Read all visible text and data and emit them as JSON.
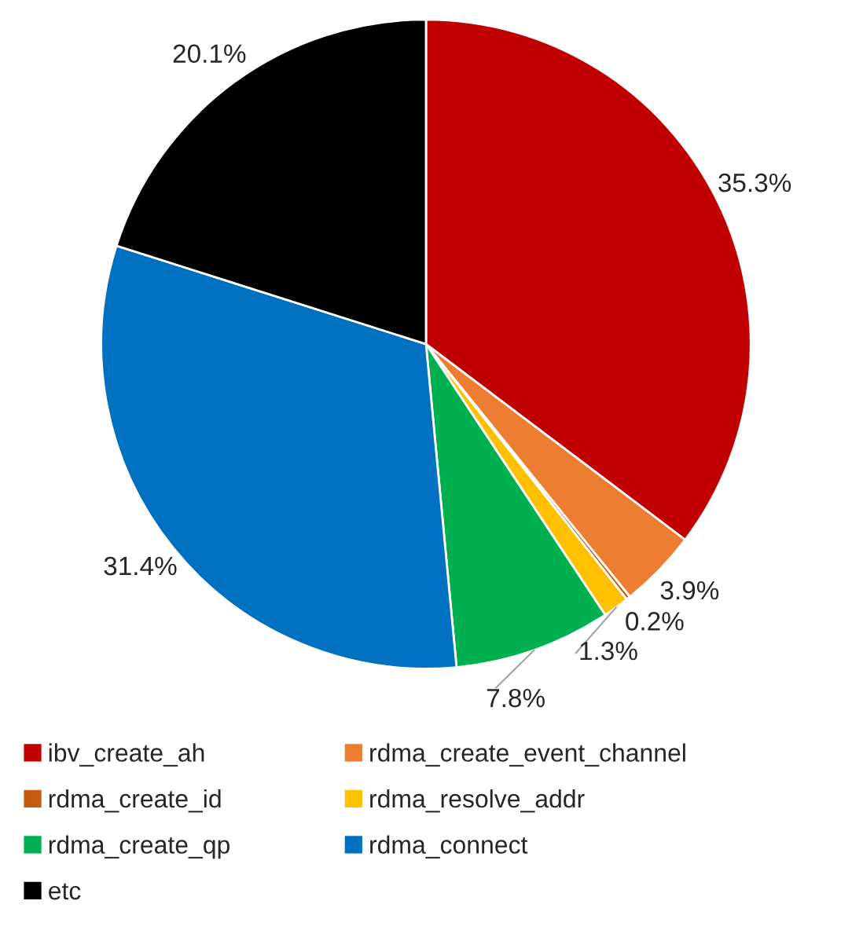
{
  "chart_data": {
    "type": "pie",
    "categories": [
      "ibv_create_ah",
      "rdma_create_event_channel",
      "rdma_create_id",
      "rdma_resolve_addr",
      "rdma_create_qp",
      "rdma_connect",
      "etc"
    ],
    "values": [
      35.3,
      3.9,
      0.2,
      1.3,
      7.8,
      31.4,
      20.1
    ],
    "colors": [
      "#c00000",
      "#ed7d31",
      "#c55a11",
      "#ffc000",
      "#00b050",
      "#0070c0",
      "#000000"
    ],
    "value_labels": [
      "35.3%",
      "3.9%",
      "0.2%",
      "1.3%",
      "7.8%",
      "31.4%",
      "20.1%"
    ],
    "legend": "bottom"
  }
}
